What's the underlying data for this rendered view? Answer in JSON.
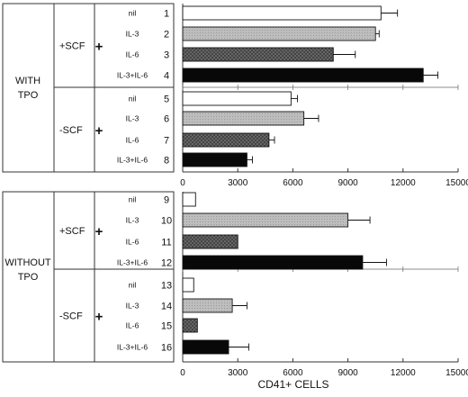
{
  "chart_data": {
    "type": "bar",
    "orientation": "horizontal",
    "xlabel": "CD41+ CELLS",
    "xlim": [
      0,
      15000
    ],
    "x_ticks": [
      "0",
      "3000",
      "6000",
      "9000",
      "12000",
      "15000"
    ],
    "error_bars": true,
    "panels": [
      {
        "label_lines": [
          "WITH",
          "TPO"
        ],
        "groups": [
          {
            "label": "+SCF",
            "cytokines": [
              "nil",
              "IL-3",
              "IL-6",
              "IL-3+IL-6"
            ]
          },
          {
            "label": "-SCF",
            "cytokines": [
              "nil",
              "IL-3",
              "IL-6",
              "IL-3+IL-6"
            ]
          }
        ],
        "bars": [
          {
            "num": "1",
            "value": 10800,
            "err": 900
          },
          {
            "num": "2",
            "value": 10500,
            "err": 200
          },
          {
            "num": "3",
            "value": 8200,
            "err": 1200
          },
          {
            "num": "4",
            "value": 13100,
            "err": 800
          },
          {
            "num": "5",
            "value": 5900,
            "err": 350
          },
          {
            "num": "6",
            "value": 6600,
            "err": 800
          },
          {
            "num": "7",
            "value": 4700,
            "err": 300
          },
          {
            "num": "8",
            "value": 3500,
            "err": 300
          }
        ]
      },
      {
        "label_lines": [
          "WITHOUT",
          "TPO"
        ],
        "groups": [
          {
            "label": "+SCF",
            "cytokines": [
              "nil",
              "IL-3",
              "IL-6",
              "IL-3+IL-6"
            ]
          },
          {
            "label": "-SCF",
            "cytokines": [
              "nil",
              "IL-3",
              "IL-6",
              "IL-3+IL-6"
            ]
          }
        ],
        "bars": [
          {
            "num": "9",
            "value": 700,
            "err": 0
          },
          {
            "num": "10",
            "value": 9000,
            "err": 1200
          },
          {
            "num": "11",
            "value": 3000,
            "err": 0
          },
          {
            "num": "12",
            "value": 9800,
            "err": 1300
          },
          {
            "num": "13",
            "value": 600,
            "err": 0
          },
          {
            "num": "14",
            "value": 2700,
            "err": 800
          },
          {
            "num": "15",
            "value": 800,
            "err": 0
          },
          {
            "num": "16",
            "value": 2500,
            "err": 1100
          }
        ]
      }
    ],
    "bar_styles": [
      {
        "fill": "#ffffff",
        "pattern": "none"
      },
      {
        "fill": "#bdbdbd",
        "pattern": "light-stipple"
      },
      {
        "fill": "#6a6a6a",
        "pattern": "crosshatch"
      },
      {
        "fill": "#080808",
        "pattern": "none"
      }
    ],
    "plus_symbol": "+"
  }
}
